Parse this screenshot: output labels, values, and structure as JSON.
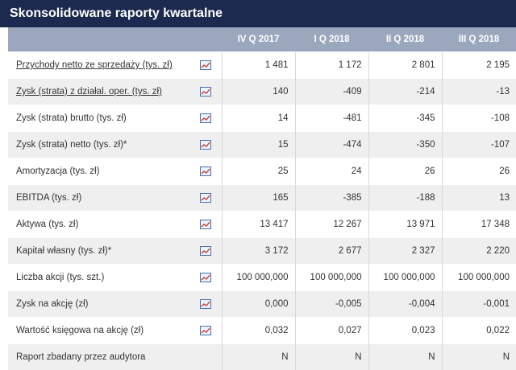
{
  "title": "Skonsolidowane raporty kwartalne",
  "columns": [
    "IV Q 2017",
    "I Q 2018",
    "II Q 2018",
    "III Q 2018"
  ],
  "icon": "chart-icon",
  "rows": [
    {
      "label": "Przychody netto ze sprzedaży (tys. zł)",
      "link": true,
      "icon": true,
      "values": [
        "1 481",
        "1 172",
        "2 801",
        "2 195"
      ]
    },
    {
      "label": "Zysk (strata) z działal. oper. (tys. zł)",
      "link": true,
      "icon": true,
      "values": [
        "140",
        "-409",
        "-214",
        "-13"
      ]
    },
    {
      "label": "Zysk (strata) brutto (tys. zł)",
      "link": false,
      "icon": true,
      "values": [
        "14",
        "-481",
        "-345",
        "-108"
      ]
    },
    {
      "label": "Zysk (strata) netto (tys. zł)*",
      "link": false,
      "icon": true,
      "values": [
        "15",
        "-474",
        "-350",
        "-107"
      ]
    },
    {
      "label": "Amortyzacja (tys. zł)",
      "link": false,
      "icon": true,
      "values": [
        "25",
        "24",
        "26",
        "26"
      ]
    },
    {
      "label": "EBITDA (tys. zł)",
      "link": false,
      "icon": true,
      "values": [
        "165",
        "-385",
        "-188",
        "13"
      ]
    },
    {
      "label": "Aktywa (tys. zł)",
      "link": false,
      "icon": true,
      "values": [
        "13 417",
        "12 267",
        "13 971",
        "17 348"
      ]
    },
    {
      "label": "Kapitał własny (tys. zł)*",
      "link": false,
      "icon": true,
      "values": [
        "3 172",
        "2 677",
        "2 327",
        "2 220"
      ]
    },
    {
      "label": "Liczba akcji (tys. szt.)",
      "link": false,
      "icon": true,
      "values": [
        "100 000,000",
        "100 000,000",
        "100 000,000",
        "100 000,000"
      ]
    },
    {
      "label": "Zysk na akcję (zł)",
      "link": false,
      "icon": true,
      "values": [
        "0,000",
        "-0,005",
        "-0,004",
        "-0,001"
      ]
    },
    {
      "label": "Wartość księgowa na akcję (zł)",
      "link": false,
      "icon": true,
      "values": [
        "0,032",
        "0,027",
        "0,023",
        "0,022"
      ]
    },
    {
      "label": "Raport zbadany przez audytora",
      "link": false,
      "icon": false,
      "values": [
        "N",
        "N",
        "N",
        "N"
      ]
    }
  ]
}
